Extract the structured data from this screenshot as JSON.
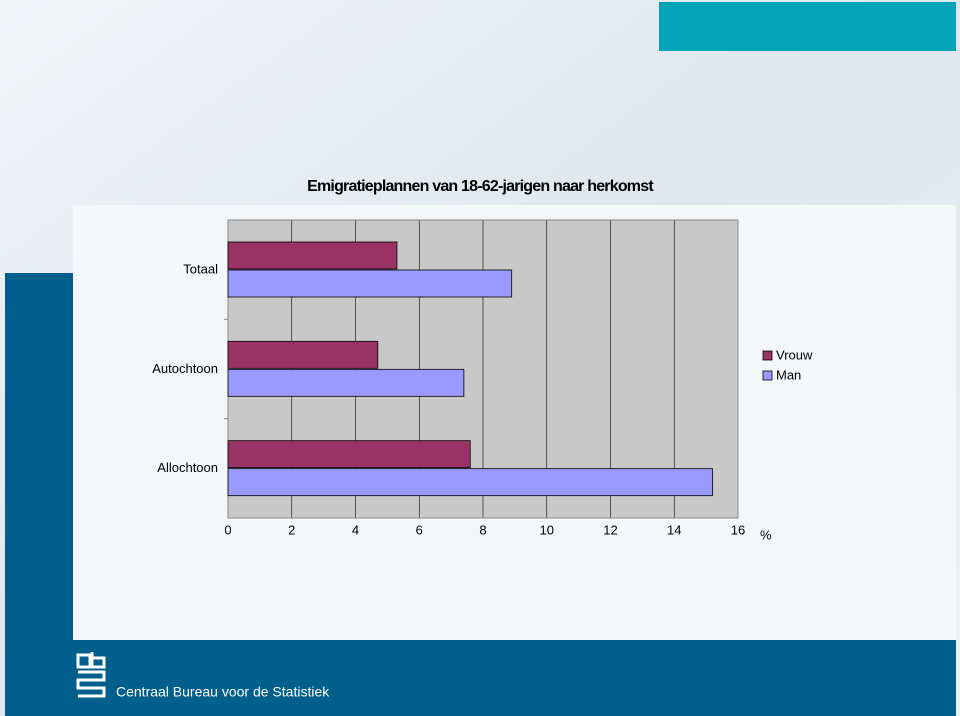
{
  "chart_data": {
    "type": "hbar",
    "title": "Emigratieplannen van 18-62-jarigen naar herkomst",
    "categories": [
      "Totaal",
      "Autochtoon",
      "Allochtoon"
    ],
    "series": [
      {
        "name": "Vrouw",
        "color": "#993366",
        "values": [
          5.3,
          4.7,
          7.6
        ]
      },
      {
        "name": "Man",
        "color": "#9999ff",
        "values": [
          8.9,
          7.4,
          15.2
        ]
      }
    ],
    "xlabel": "%",
    "xlim": [
      0,
      16
    ],
    "xticks": [
      0,
      2,
      4,
      6,
      8,
      10,
      12,
      14,
      16
    ],
    "grid": true,
    "legend": "right"
  },
  "footer": "Centraal Bureau voor de Statistiek"
}
